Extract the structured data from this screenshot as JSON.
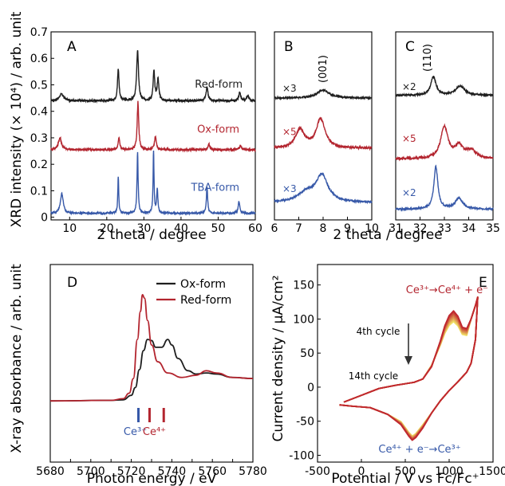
{
  "colors": {
    "black": "#1e1e1e",
    "red": "#b3252f",
    "blue": "#3658a8"
  },
  "top_ylabel": "XRD intensity (× 10⁴) / arb. unit",
  "chart_data": [
    {
      "panel": "A",
      "type": "line",
      "xlabel": "2 theta / degree",
      "ylabel": "XRD intensity (× 10⁴) / arb. unit",
      "xlim": [
        5,
        60
      ],
      "ylim": [
        -0.01,
        0.7
      ],
      "xticks": [
        "10",
        "20",
        "30",
        "40",
        "50",
        "60"
      ],
      "yticks": [
        "0",
        "0.1",
        "0.2",
        "0.3",
        "0.4",
        "0.5",
        "0.6",
        "0.7"
      ],
      "series": [
        {
          "name": "Red-form",
          "color": "#1e1e1e",
          "baseline": 0.44,
          "noise": 0.004,
          "peaks": [
            [
              7.8,
              0.025,
              0.7
            ],
            [
              23.1,
              0.12,
              0.25
            ],
            [
              28.3,
              0.19,
              0.3
            ],
            [
              32.7,
              0.11,
              0.25
            ],
            [
              33.8,
              0.08,
              0.3
            ],
            [
              47,
              0.05,
              0.3
            ],
            [
              55.8,
              0.03,
              0.3
            ],
            [
              58,
              0.02,
              0.3
            ]
          ]
        },
        {
          "name": "Ox-form",
          "color": "#b3252f",
          "baseline": 0.255,
          "noise": 0.004,
          "peaks": [
            [
              7.4,
              0.045,
              0.5
            ],
            [
              23.3,
              0.045,
              0.25
            ],
            [
              28.4,
              0.18,
              0.25
            ],
            [
              33.1,
              0.05,
              0.3
            ],
            [
              47.5,
              0.02,
              0.3
            ],
            [
              56,
              0.015,
              0.3
            ]
          ]
        },
        {
          "name": "TBA-form",
          "color": "#3658a8",
          "baseline": 0.015,
          "noise": 0.003,
          "peaks": [
            [
              7.9,
              0.075,
              0.45
            ],
            [
              23.1,
              0.14,
              0.15
            ],
            [
              28.3,
              0.23,
              0.18
            ],
            [
              32.6,
              0.235,
              0.15
            ],
            [
              33.6,
              0.09,
              0.2
            ],
            [
              47,
              0.1,
              0.2
            ],
            [
              55.6,
              0.045,
              0.25
            ]
          ]
        }
      ]
    },
    {
      "panel": "B",
      "type": "line",
      "xlabel": "2 theta / degree",
      "xlim": [
        6,
        10
      ],
      "xticks": [
        "6",
        "7",
        "8",
        "9",
        "10"
      ],
      "annotation": "(001)",
      "series": [
        {
          "name": "×3",
          "color": "#1e1e1e",
          "baseline": 0.45,
          "noise": 0.003,
          "peaks": [
            [
              8.0,
              0.03,
              0.3
            ]
          ]
        },
        {
          "name": "×5",
          "color": "#b3252f",
          "baseline": 0.26,
          "noise": 0.004,
          "peaks": [
            [
              7.05,
              0.07,
              0.22
            ],
            [
              7.9,
              0.11,
              0.22
            ]
          ]
        },
        {
          "name": "×3",
          "color": "#3658a8",
          "baseline": 0.055,
          "noise": 0.003,
          "peaks": [
            [
              7.3,
              0.035,
              0.4
            ],
            [
              7.95,
              0.1,
              0.3
            ]
          ]
        }
      ]
    },
    {
      "panel": "C",
      "type": "line",
      "xlabel": "",
      "xlim": [
        31,
        35
      ],
      "xticks": [
        "31",
        "32",
        "33",
        "34",
        "35"
      ],
      "annotation": "(110)",
      "series": [
        {
          "name": "×2",
          "color": "#1e1e1e",
          "baseline": 0.46,
          "noise": 0.003,
          "peaks": [
            [
              32.55,
              0.07,
              0.13
            ],
            [
              33.65,
              0.035,
              0.22
            ]
          ]
        },
        {
          "name": "×5",
          "color": "#b3252f",
          "baseline": 0.22,
          "noise": 0.004,
          "peaks": [
            [
              33.0,
              0.12,
              0.18
            ],
            [
              33.6,
              0.045,
              0.2
            ],
            [
              34.1,
              0.03,
              0.25
            ]
          ]
        },
        {
          "name": "×2",
          "color": "#3658a8",
          "baseline": 0.03,
          "noise": 0.003,
          "peaks": [
            [
              32.65,
              0.16,
              0.1
            ],
            [
              33.6,
              0.04,
              0.2
            ]
          ]
        }
      ]
    },
    {
      "panel": "D",
      "type": "line",
      "xlabel": "Photon energy / eV",
      "ylabel": "X-ray absorbance / arb. unit",
      "xlim": [
        5680,
        5780
      ],
      "xticks": [
        "5680",
        "5690",
        "5700",
        "5710",
        "5720",
        "5730",
        "5740",
        "5750",
        "5760",
        "5770",
        "5780"
      ],
      "legend": "top-right",
      "series": [
        {
          "name": "Ox-form",
          "color": "#1e1e1e",
          "points": [
            [
              5680,
              0
            ],
            [
              5710,
              0.005
            ],
            [
              5716,
              0.01
            ],
            [
              5720,
              0.05
            ],
            [
              5722,
              0.12
            ],
            [
              5724,
              0.28
            ],
            [
              5726,
              0.45
            ],
            [
              5728,
              0.55
            ],
            [
              5730,
              0.54
            ],
            [
              5732,
              0.48
            ],
            [
              5735,
              0.48
            ],
            [
              5738,
              0.55
            ],
            [
              5740,
              0.5
            ],
            [
              5743,
              0.38
            ],
            [
              5748,
              0.27
            ],
            [
              5752,
              0.24
            ],
            [
              5757,
              0.25
            ],
            [
              5762,
              0.24
            ],
            [
              5770,
              0.21
            ],
            [
              5780,
              0.2
            ]
          ]
        },
        {
          "name": "Red-form",
          "color": "#b3252f",
          "points": [
            [
              5680,
              0
            ],
            [
              5710,
              0.005
            ],
            [
              5716,
              0.02
            ],
            [
              5719,
              0.07
            ],
            [
              5721,
              0.2
            ],
            [
              5723,
              0.55
            ],
            [
              5724.5,
              0.8
            ],
            [
              5725.5,
              0.95
            ],
            [
              5726.5,
              0.92
            ],
            [
              5728,
              0.72
            ],
            [
              5730,
              0.5
            ],
            [
              5733,
              0.35
            ],
            [
              5738,
              0.25
            ],
            [
              5745,
              0.21
            ],
            [
              5752,
              0.23
            ],
            [
              5757,
              0.27
            ],
            [
              5762,
              0.25
            ],
            [
              5770,
              0.21
            ],
            [
              5780,
              0.2
            ]
          ]
        }
      ],
      "markers": [
        {
          "label": "Ce³⁺",
          "color": "#3658a8",
          "x": 5723.5
        },
        {
          "label": "Ce⁴⁺",
          "color": "#b3252f",
          "x": 5729
        },
        {
          "label": "",
          "color": "#b3252f",
          "x": 5736
        }
      ]
    },
    {
      "panel": "E",
      "type": "line",
      "xlabel": "Potential / V vs Fc/Fc⁺",
      "ylabel": "Current density / µA/cm²",
      "xlim": [
        -500,
        1500
      ],
      "ylim": [
        -110,
        180
      ],
      "xticks": [
        "-500",
        "0",
        "500",
        "1000",
        "1500"
      ],
      "yticks": [
        "-100",
        "-50",
        "0",
        "50",
        "100",
        "150"
      ],
      "cycles": {
        "first": "4th cycle",
        "last": "14th cycle",
        "count": 11,
        "first_color": "#c0282f",
        "last_color": "#f2e66a"
      },
      "oxidation_label": "Ce³⁺→Ce⁴⁺ + e⁻",
      "reduction_label": "Ce⁴⁺ + e⁻→Ce³⁺",
      "anodic_branch": [
        [
          -200,
          -22
        ],
        [
          0,
          -12
        ],
        [
          200,
          -2
        ],
        [
          400,
          3
        ],
        [
          600,
          7
        ],
        [
          700,
          12
        ],
        [
          800,
          30
        ],
        [
          900,
          68
        ],
        [
          950,
          90
        ],
        [
          1000,
          105
        ],
        [
          1050,
          112
        ],
        [
          1100,
          104
        ],
        [
          1150,
          88
        ],
        [
          1200,
          86
        ],
        [
          1250,
          100
        ],
        [
          1300,
          120
        ],
        [
          1325,
          132
        ]
      ],
      "cathodic_branch": [
        [
          1325,
          132
        ],
        [
          1300,
          70
        ],
        [
          1250,
          35
        ],
        [
          1200,
          22
        ],
        [
          1100,
          8
        ],
        [
          1000,
          -5
        ],
        [
          900,
          -20
        ],
        [
          800,
          -38
        ],
        [
          700,
          -60
        ],
        [
          620,
          -74
        ],
        [
          580,
          -78
        ],
        [
          540,
          -72
        ],
        [
          450,
          -55
        ],
        [
          300,
          -40
        ],
        [
          100,
          -30
        ],
        [
          -100,
          -28
        ],
        [
          -250,
          -26
        ]
      ]
    }
  ]
}
